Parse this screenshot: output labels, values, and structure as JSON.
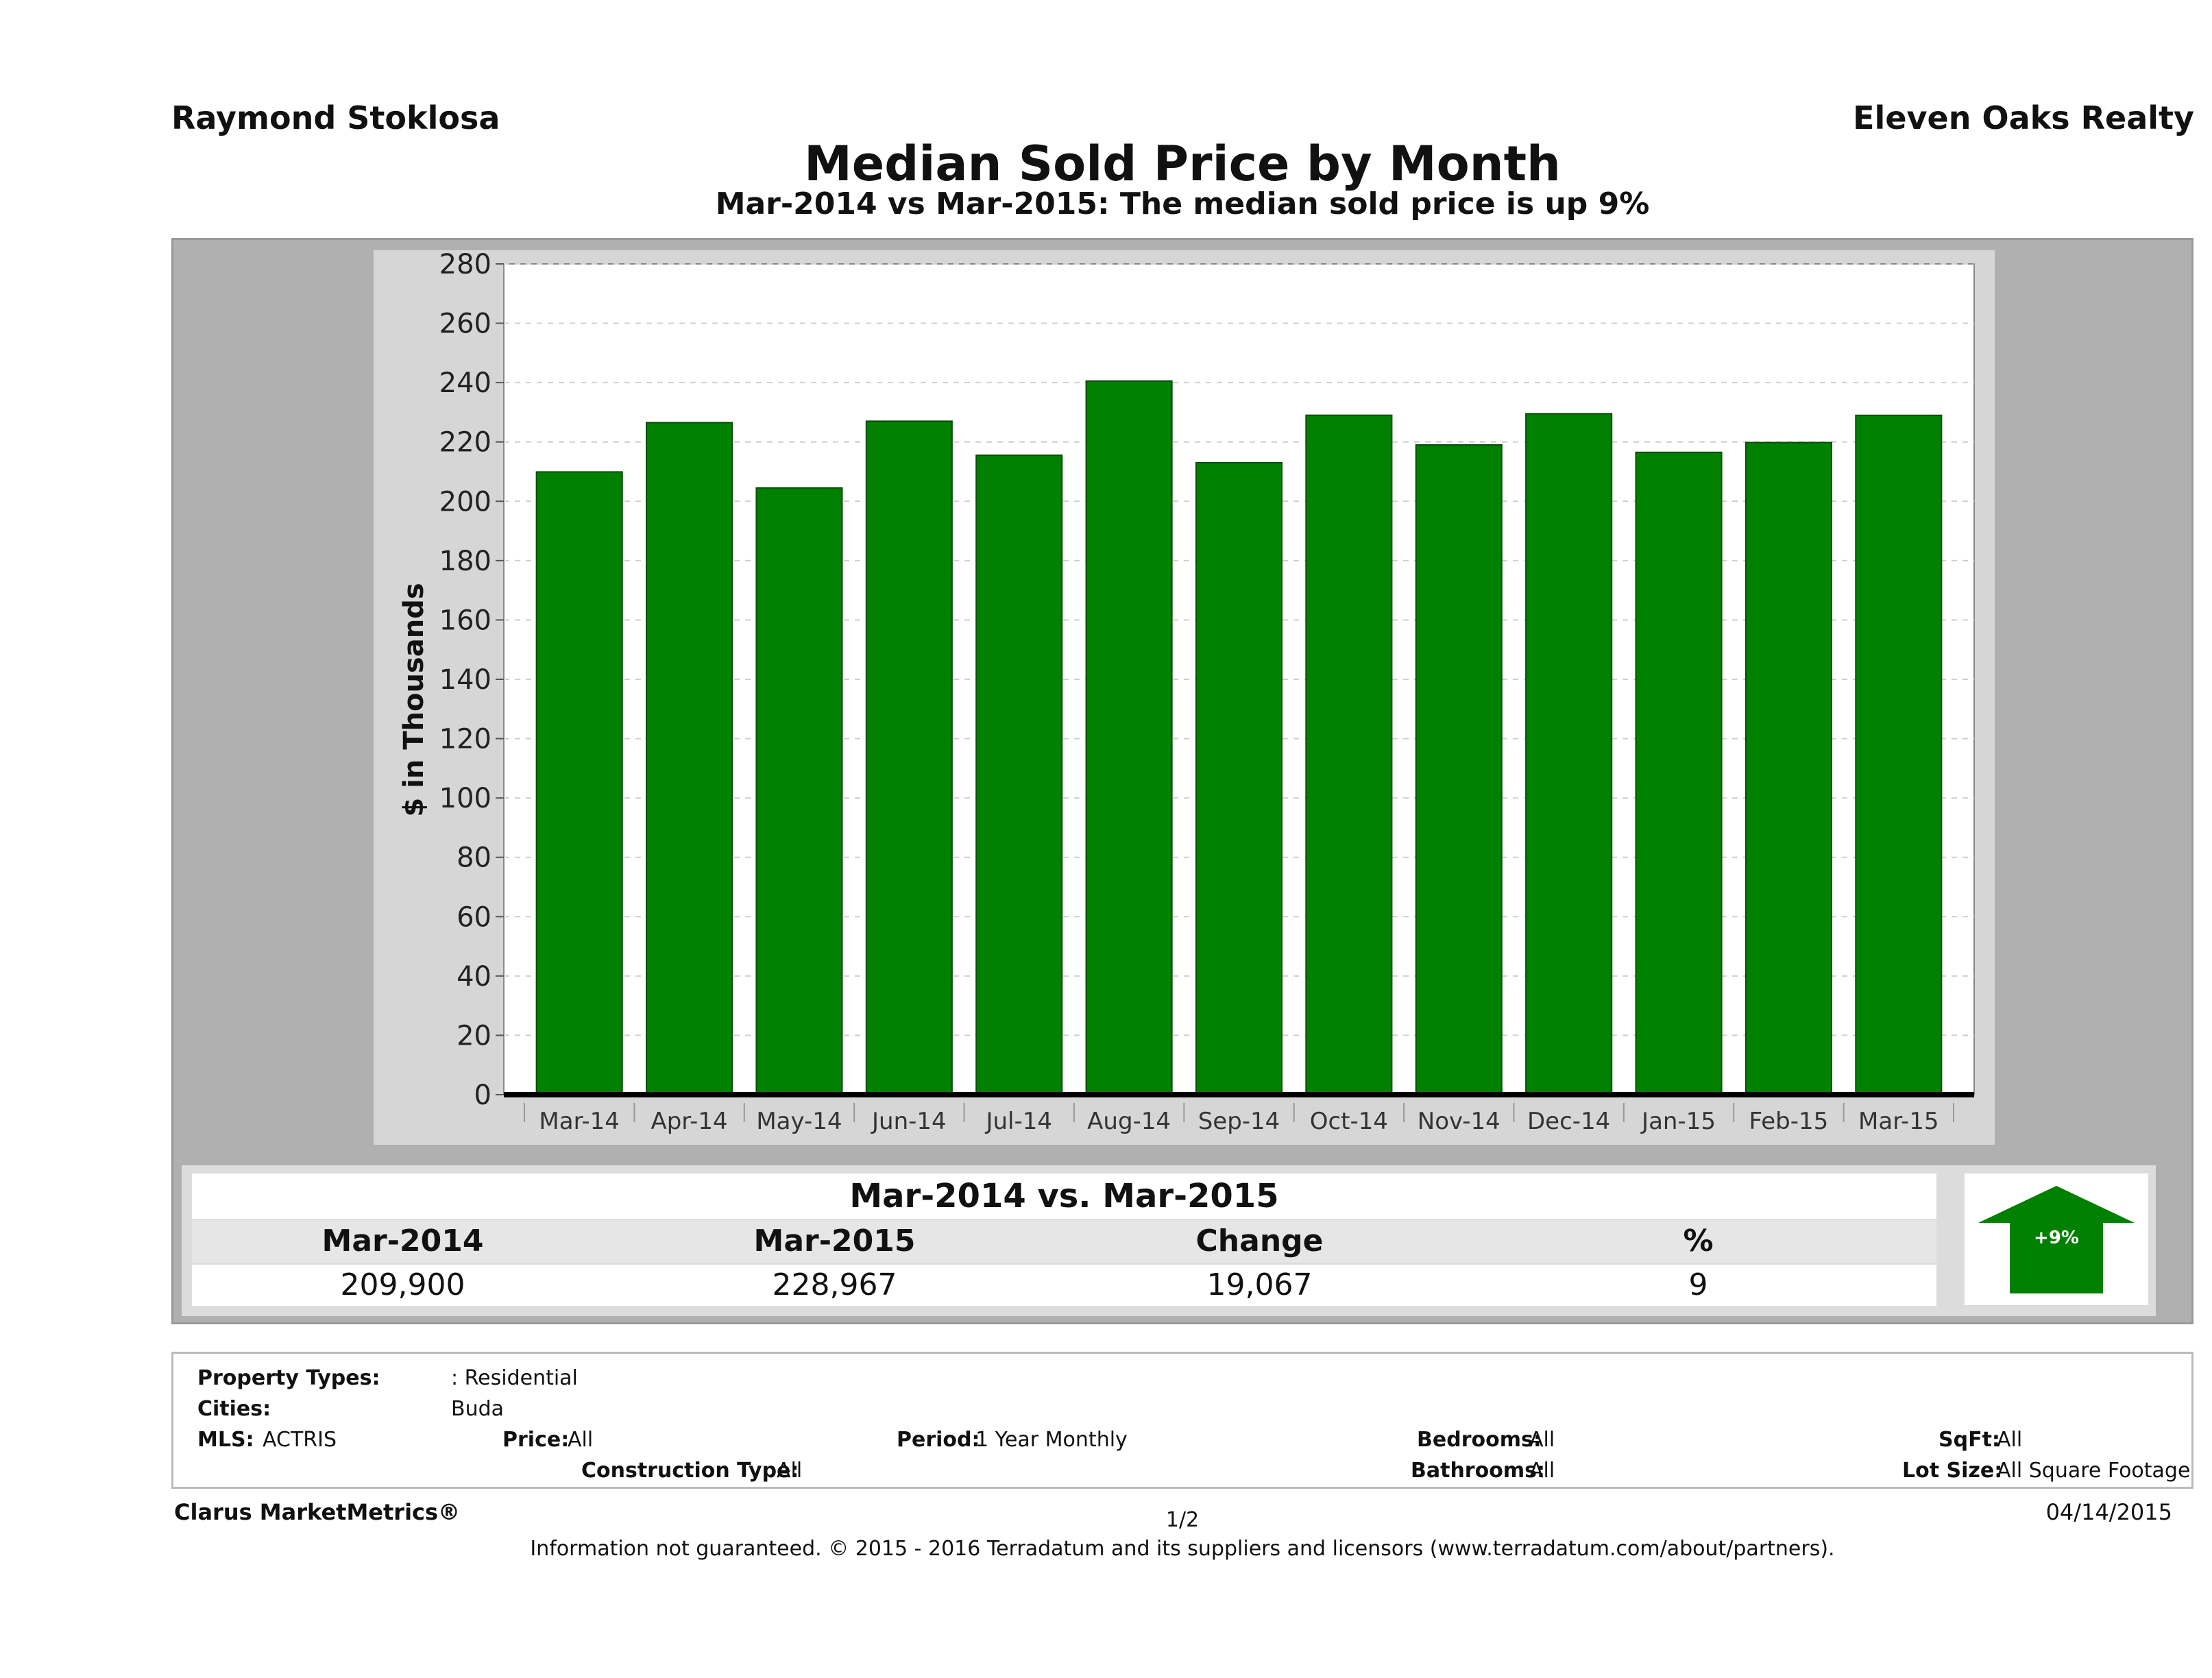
{
  "header": {
    "agent": "Raymond Stoklosa",
    "brokerage": "Eleven Oaks Realty",
    "title": "Median Sold Price by Month",
    "subtitle": "Mar-2014 vs Mar-2015: The median sold price is up 9%"
  },
  "chart_data": {
    "type": "bar",
    "title": "Median Sold Price by Month",
    "subtitle": "Mar-2014 vs Mar-2015: The median sold price is up 9%",
    "xlabel": "",
    "ylabel": "$ in Thousands",
    "ylim": [
      0,
      280
    ],
    "yticks": [
      0,
      20,
      40,
      60,
      80,
      100,
      120,
      140,
      160,
      180,
      200,
      220,
      240,
      260,
      280
    ],
    "grid": true,
    "bar_color": "#008000",
    "categories": [
      "Mar-14",
      "Apr-14",
      "May-14",
      "Jun-14",
      "Jul-14",
      "Aug-14",
      "Sep-14",
      "Oct-14",
      "Nov-14",
      "Dec-14",
      "Jan-15",
      "Feb-15",
      "Mar-15"
    ],
    "values": [
      209.9,
      226.5,
      204.5,
      227,
      215.5,
      240.5,
      213,
      229,
      219,
      229.5,
      216.5,
      219.8,
      228.967
    ]
  },
  "summary": {
    "header": "Mar-2014 vs. Mar-2015",
    "columns": [
      "Mar-2014",
      "Mar-2015",
      "Change",
      "%"
    ],
    "values": [
      "209,900",
      "228,967",
      "19,067",
      "9"
    ],
    "arrow_label": "+9%",
    "arrow_color": "#008000"
  },
  "filters": {
    "property_types_label": "Property Types:",
    "property_types_value": ": Residential",
    "cities_label": "Cities:",
    "cities_value": "Buda",
    "mls_label": "MLS:",
    "mls_value": "ACTRIS",
    "price_label": "Price:",
    "price_value": "All",
    "period_label": "Period:",
    "period_value": "1 Year Monthly",
    "bedrooms_label": "Bedrooms:",
    "bedrooms_value": "All",
    "sqft_label": "SqFt:",
    "sqft_value": "All",
    "construction_label": "Construction Type:",
    "construction_value": "All",
    "bathrooms_label": "Bathrooms:",
    "bathrooms_value": "All",
    "lotsize_label": "Lot Size:",
    "lotsize_value": "All Square Footage"
  },
  "footer": {
    "brand": "Clarus MarketMetrics®",
    "page": "1/2",
    "date": "04/14/2015",
    "disclaimer": "Information not guaranteed. © 2015 - 2016 Terradatum and its suppliers and licensors (www.terradatum.com/about/partners)."
  }
}
